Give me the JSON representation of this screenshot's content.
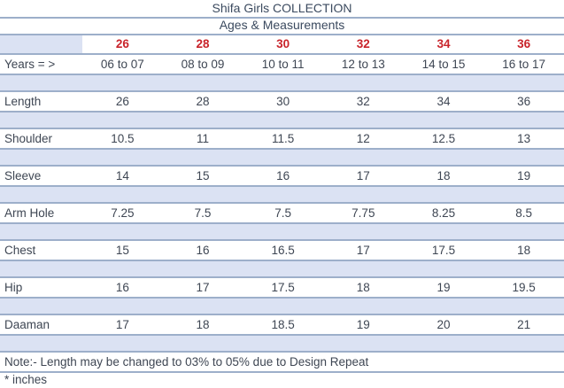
{
  "page": {
    "title": "Shifa Girls COLLECTION",
    "subtitle": "Ages & Measurements",
    "note": "Note:- Length may be changed to 03% to 05% due to Design Repeat",
    "unit_note": "* inches"
  },
  "colors": {
    "band": "#dbe2f3",
    "line": "#9dafca",
    "size_red": "#c9242b",
    "text": "#3e4653"
  },
  "table": {
    "years_label": "Years = >",
    "sizes": [
      "26",
      "28",
      "30",
      "32",
      "34",
      "36"
    ],
    "years": [
      "06 to 07",
      "08 to 09",
      "10 to 11",
      "12 to 13",
      "14 to 15",
      "16 to 17"
    ],
    "rows": [
      {
        "label": "Length",
        "values": [
          "26",
          "28",
          "30",
          "32",
          "34",
          "36"
        ]
      },
      {
        "label": "Shoulder",
        "values": [
          "10.5",
          "11",
          "11.5",
          "12",
          "12.5",
          "13"
        ]
      },
      {
        "label": "Sleeve",
        "values": [
          "14",
          "15",
          "16",
          "17",
          "18",
          "19"
        ]
      },
      {
        "label": "Arm Hole",
        "values": [
          "7.25",
          "7.5",
          "7.5",
          "7.75",
          "8.25",
          "8.5"
        ]
      },
      {
        "label": "Chest",
        "values": [
          "15",
          "16",
          "16.5",
          "17",
          "17.5",
          "18"
        ]
      },
      {
        "label": "Hip",
        "values": [
          "16",
          "17",
          "17.5",
          "18",
          "19",
          "19.5"
        ]
      },
      {
        "label": "Daaman",
        "values": [
          "17",
          "18",
          "18.5",
          "19",
          "20",
          "21"
        ]
      }
    ]
  }
}
